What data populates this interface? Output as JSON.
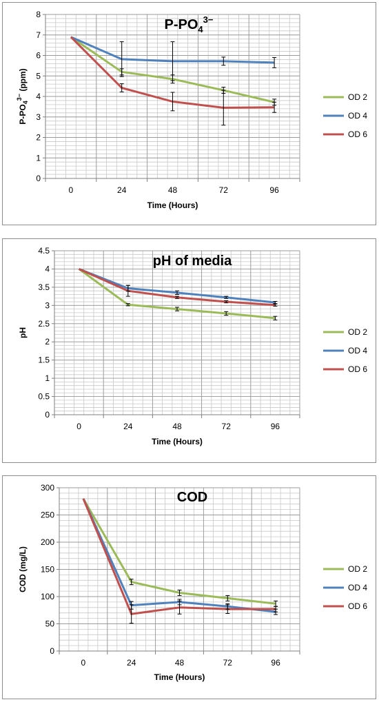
{
  "chart_data": [
    {
      "type": "line",
      "title": "P-PO",
      "title_sub": "4",
      "title_sup": "3−",
      "ylabel": "P-PO",
      "ylabel_sub": "4",
      "ylabel_sup": "3−",
      "ylabel_unit": " (ppm)",
      "xlabel": "Time (Hours)",
      "ylim": [
        0,
        8
      ],
      "ystep": 1,
      "yticks": [
        "0",
        "1",
        "2",
        "3",
        "4",
        "5",
        "6",
        "7",
        "8"
      ],
      "categories": [
        "0",
        "24",
        "48",
        "72",
        "96"
      ],
      "grid": true,
      "legend_position": "right",
      "series": [
        {
          "name": "OD 2",
          "color": "#9bbb59",
          "values": [
            6.9,
            5.2,
            4.85,
            4.3,
            3.72
          ],
          "errors": [
            0,
            0.15,
            0.2,
            0.15,
            0.15
          ]
        },
        {
          "name": "OD 4",
          "color": "#4f81bd",
          "values": [
            6.9,
            5.82,
            5.72,
            5.72,
            5.65
          ],
          "errors": [
            0,
            0.85,
            0.95,
            0.2,
            0.25
          ]
        },
        {
          "name": "OD 6",
          "color": "#c0504d",
          "values": [
            6.9,
            4.42,
            3.75,
            3.45,
            3.47
          ],
          "errors": [
            0,
            0.2,
            0.45,
            0.85,
            0.25
          ]
        }
      ]
    },
    {
      "type": "line",
      "title": "pH of media",
      "ylabel": "pH",
      "xlabel": "Time (Hours)",
      "ylim": [
        0,
        4.5
      ],
      "ystep": 0.5,
      "yticks": [
        "0",
        "0.5",
        "1",
        "1.5",
        "2",
        "2.5",
        "3",
        "3.5",
        "4",
        "4.5"
      ],
      "categories": [
        "0",
        "24",
        "48",
        "72",
        "96"
      ],
      "grid": true,
      "legend_position": "right",
      "series": [
        {
          "name": "OD 2",
          "color": "#9bbb59",
          "values": [
            4.0,
            3.02,
            2.9,
            2.78,
            2.65
          ],
          "errors": [
            0,
            0.03,
            0.05,
            0.05,
            0.05
          ]
        },
        {
          "name": "OD 4",
          "color": "#4f81bd",
          "values": [
            4.0,
            3.47,
            3.35,
            3.22,
            3.08
          ],
          "errors": [
            0,
            0.08,
            0.05,
            0.03,
            0.03
          ]
        },
        {
          "name": "OD 6",
          "color": "#c0504d",
          "values": [
            4.0,
            3.4,
            3.22,
            3.1,
            3.01
          ],
          "errors": [
            0,
            0.15,
            0.03,
            0.03,
            0.03
          ]
        }
      ]
    },
    {
      "type": "line",
      "title": "COD",
      "ylabel": "COD (mg/L)",
      "xlabel": "Time (Hours)",
      "ylim": [
        0,
        300
      ],
      "ystep": 50,
      "yticks": [
        "0",
        "50",
        "100",
        "150",
        "200",
        "250",
        "300"
      ],
      "categories": [
        "0",
        "24",
        "48",
        "72",
        "96"
      ],
      "grid": true,
      "legend_position": "right",
      "series": [
        {
          "name": "OD 2",
          "color": "#9bbb59",
          "values": [
            280,
            127,
            107,
            97,
            87
          ],
          "errors": [
            0,
            5,
            5,
            5,
            5
          ]
        },
        {
          "name": "OD 4",
          "color": "#4f81bd",
          "values": [
            280,
            84,
            90,
            82,
            72
          ],
          "errors": [
            0,
            7,
            5,
            5,
            5
          ]
        },
        {
          "name": "OD 6",
          "color": "#c0504d",
          "values": [
            280,
            68,
            80,
            77,
            77
          ],
          "errors": [
            0,
            17,
            12,
            8,
            5
          ]
        }
      ]
    }
  ]
}
